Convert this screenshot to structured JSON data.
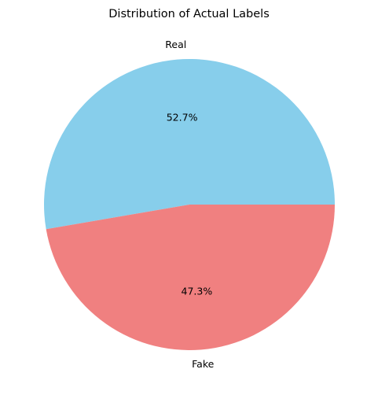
{
  "chart_data": {
    "type": "pie",
    "title": "Distribution of Actual Labels",
    "categories": [
      "Real",
      "Fake"
    ],
    "values": [
      52.7,
      47.3
    ],
    "value_labels": [
      "52.7%",
      "47.3%"
    ],
    "colors": [
      "#87ceeb",
      "#f08080"
    ],
    "start_angle_deg": 0,
    "direction": "counterclockwise",
    "legend": "none"
  }
}
